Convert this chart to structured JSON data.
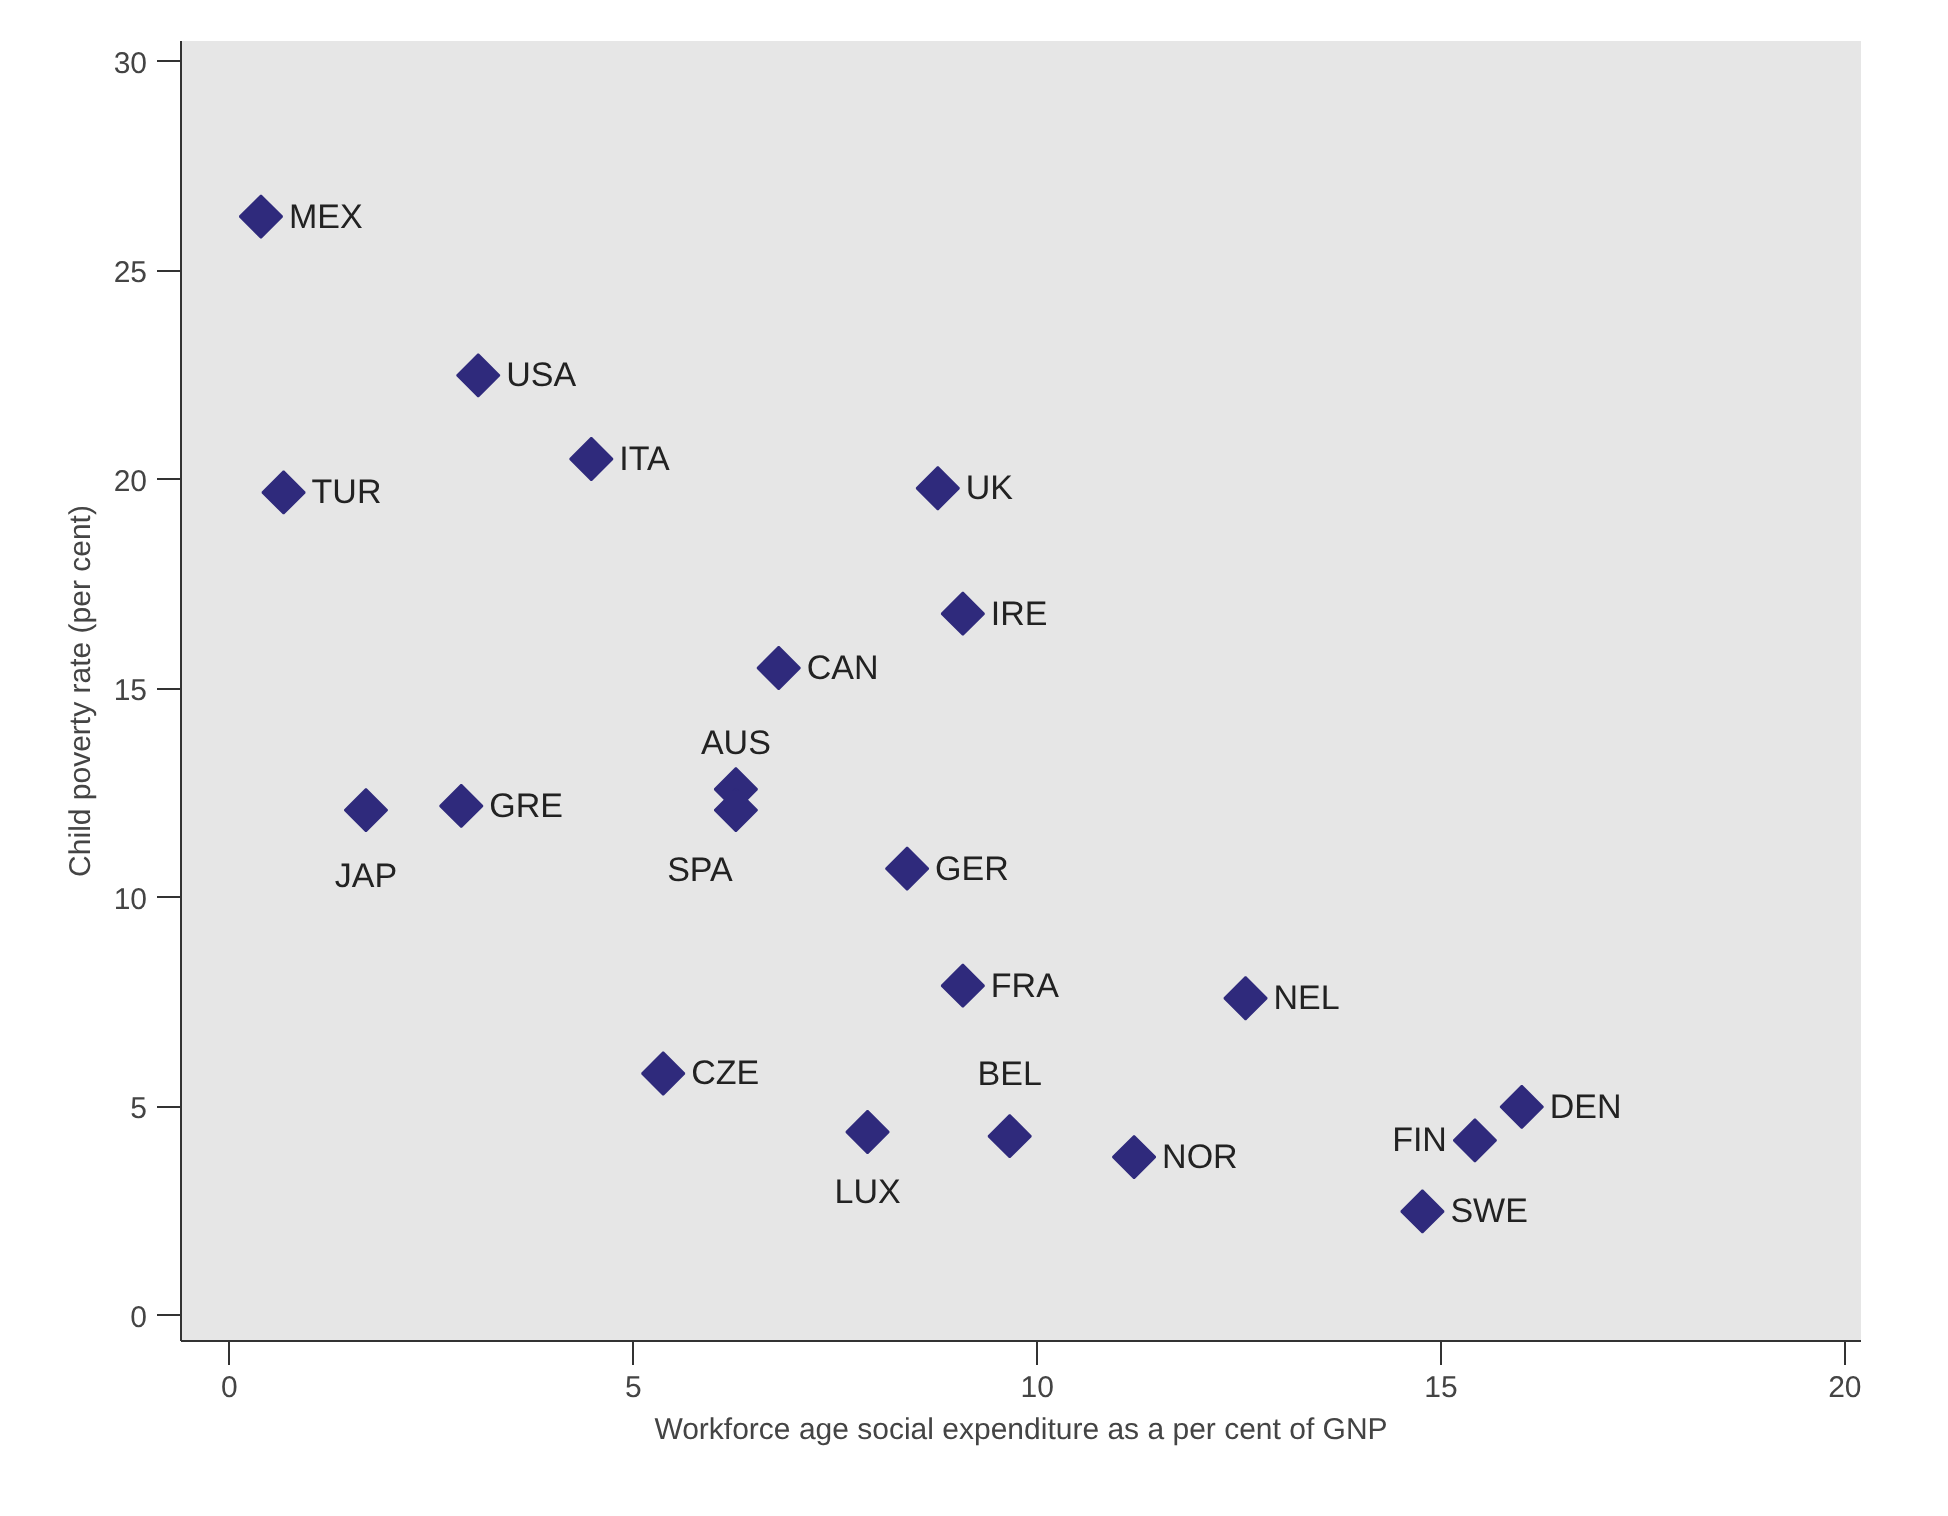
{
  "chart_data": {
    "type": "scatter",
    "xlabel": "Workforce age social expenditure as a per cent of GNP",
    "ylabel": "Child poverty rate (per cent)",
    "x": [
      0.39,
      3.08,
      0.67,
      4.48,
      8.77,
      9.08,
      6.8,
      6.27,
      6.27,
      1.69,
      2.87,
      8.39,
      9.08,
      12.58,
      5.37,
      7.9,
      9.66,
      11.2,
      15.42,
      16.0,
      14.77
    ],
    "series": [
      {
        "color": "#2f2a7c",
        "values": [
          26.3,
          22.5,
          19.7,
          20.5,
          19.8,
          16.8,
          15.5,
          12.6,
          12.1,
          12.1,
          12.2,
          10.7,
          7.9,
          7.6,
          5.8,
          4.4,
          4.3,
          3.8,
          4.2,
          5.0,
          2.5
        ]
      }
    ],
    "marker": "diamond",
    "xlim": [
      -0.6,
      20.2
    ],
    "ylim": [
      -0.6,
      30.5
    ],
    "xticks": [
      0,
      5,
      10,
      15,
      20
    ],
    "yticks": [
      0,
      5,
      10,
      15,
      20,
      25,
      30
    ],
    "annotations": [
      {
        "text": "MEX",
        "x": 0.39,
        "y": 26.3
      },
      {
        "text": "USA",
        "x": 3.08,
        "y": 22.5
      },
      {
        "text": "TUR",
        "x": 0.67,
        "y": 19.7
      },
      {
        "text": "ITA",
        "x": 4.48,
        "y": 20.5
      },
      {
        "text": "UK",
        "x": 8.77,
        "y": 19.8
      },
      {
        "text": "IRE",
        "x": 9.08,
        "y": 16.8
      },
      {
        "text": "CAN",
        "x": 6.8,
        "y": 15.5
      },
      {
        "text": "AUS",
        "x": 6.27,
        "y": 12.6
      },
      {
        "text": "SPA",
        "x": 6.27,
        "y": 12.1
      },
      {
        "text": "JAP",
        "x": 1.69,
        "y": 12.1
      },
      {
        "text": "GRE",
        "x": 2.87,
        "y": 12.2
      },
      {
        "text": "GER",
        "x": 8.39,
        "y": 10.7
      },
      {
        "text": "FRA",
        "x": 9.08,
        "y": 7.9
      },
      {
        "text": "NEL",
        "x": 12.58,
        "y": 7.6
      },
      {
        "text": "CZE",
        "x": 5.37,
        "y": 5.8
      },
      {
        "text": "LUX",
        "x": 7.9,
        "y": 4.4
      },
      {
        "text": "BEL",
        "x": 9.66,
        "y": 4.3
      },
      {
        "text": "NOR",
        "x": 11.2,
        "y": 3.8
      },
      {
        "text": "FIN",
        "x": 15.42,
        "y": 4.2
      },
      {
        "text": "DEN",
        "x": 16.0,
        "y": 5.0
      },
      {
        "text": "SWE",
        "x": 14.77,
        "y": 2.5
      }
    ]
  }
}
